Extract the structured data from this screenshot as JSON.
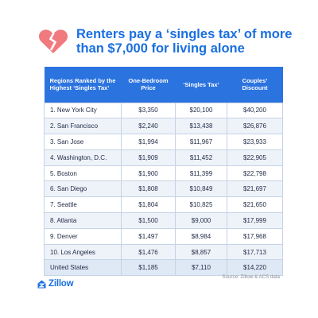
{
  "title": "Renters pay a ‘singles tax’ of more than $7,000 for living alone",
  "icons": {
    "header": "broken-heart-icon",
    "logo": "zillow-house-icon"
  },
  "colors": {
    "accent": "#1a6fe0",
    "header_bg": "#2b73df",
    "heart": "#f07a7e",
    "row_alt": "#eef3fa",
    "total_row": "#dfe8f5"
  },
  "chart_data": {
    "type": "table",
    "columns": [
      "Regions Ranked by the Highest ‘Singles Tax’",
      "One-Bedroom Price",
      "‘Singles Tax’",
      "Couples’ Discount"
    ],
    "rows": [
      [
        "1. New York City",
        "$3,350",
        "$20,100",
        "$40,200"
      ],
      [
        "2. San Francisco",
        "$2,240",
        "$13,438",
        "$26,876"
      ],
      [
        "3. San Jose",
        "$1,994",
        "$11,967",
        "$23,933"
      ],
      [
        "4. Washington, D.C.",
        "$1,909",
        "$11,452",
        "$22,905"
      ],
      [
        "5. Boston",
        "$1,900",
        "$11,399",
        "$22,798"
      ],
      [
        "6. San Diego",
        "$1,808",
        "$10,849",
        "$21,697"
      ],
      [
        "7. Seattle",
        "$1,804",
        "$10,825",
        "$21,650"
      ],
      [
        "8. Atlanta",
        "$1,500",
        "$9,000",
        "$17,999"
      ],
      [
        "9. Denver",
        "$1,497",
        "$8,984",
        "$17,968"
      ],
      [
        "10. Los Angeles",
        "$1,476",
        "$8,857",
        "$17,713"
      ],
      [
        "United States",
        "$1,185",
        "$7,110",
        "$14,220"
      ]
    ]
  },
  "source": "Source: Zillow & ACS data",
  "logo_text": "Zillow"
}
